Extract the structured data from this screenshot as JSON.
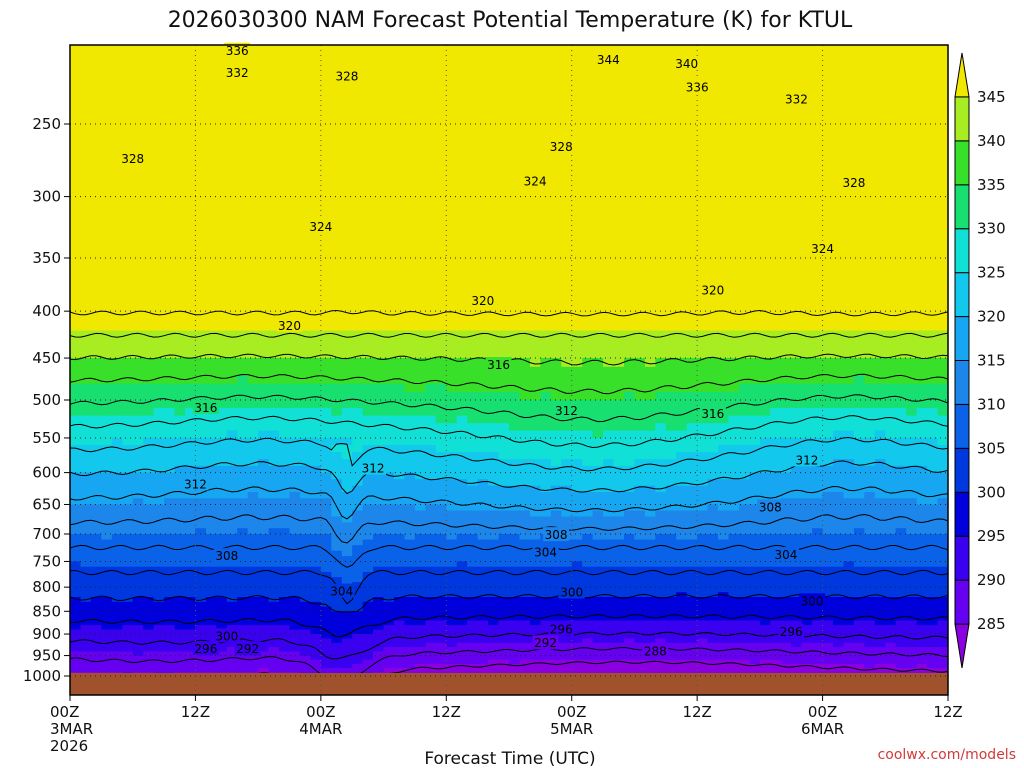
{
  "chart_data": {
    "type": "heatmap",
    "title": "2026030300 NAM Forecast Potential Temperature (K) for KTUL",
    "xlabel": "Forecast Time (UTC)",
    "credit": "coolwx.com/models",
    "x_range_hours": [
      0,
      84
    ],
    "x_ticks": [
      {
        "hour": 0,
        "lines": [
          "00Z",
          "3MAR",
          "2026"
        ]
      },
      {
        "hour": 12,
        "lines": [
          "12Z"
        ]
      },
      {
        "hour": 24,
        "lines": [
          "00Z",
          "4MAR"
        ]
      },
      {
        "hour": 36,
        "lines": [
          "12Z"
        ]
      },
      {
        "hour": 48,
        "lines": [
          "00Z",
          "5MAR"
        ]
      },
      {
        "hour": 60,
        "lines": [
          "12Z"
        ]
      },
      {
        "hour": 72,
        "lines": [
          "00Z",
          "6MAR"
        ]
      },
      {
        "hour": 84,
        "lines": [
          "12Z"
        ]
      }
    ],
    "y_label_unit": "hPa",
    "y_range_hpa": [
      200,
      1000
    ],
    "y_ticks": [
      250,
      300,
      350,
      400,
      450,
      500,
      550,
      600,
      650,
      700,
      750,
      800,
      850,
      900,
      950,
      1000
    ],
    "colorbar": {
      "min": 280,
      "max": 350,
      "ticks": [
        285,
        290,
        295,
        300,
        305,
        310,
        315,
        320,
        325,
        330,
        335,
        340,
        345
      ],
      "colors": [
        "#8a00e0",
        "#6600f0",
        "#3a00f0",
        "#0000dc",
        "#0038e0",
        "#0a62e8",
        "#1c86ea",
        "#16a6f2",
        "#12c8ec",
        "#10e0d6",
        "#18e070",
        "#38e02a",
        "#a8ec22",
        "#f0e800"
      ]
    },
    "contour_labels": [
      {
        "text": "336",
        "hour": 16.0,
        "hpa": 208
      },
      {
        "text": "332",
        "hour": 16.0,
        "hpa": 220
      },
      {
        "text": "328",
        "hour": 26.5,
        "hpa": 222
      },
      {
        "text": "344",
        "hour": 51.5,
        "hpa": 213
      },
      {
        "text": "340",
        "hour": 59.0,
        "hpa": 215
      },
      {
        "text": "336",
        "hour": 60.0,
        "hpa": 228
      },
      {
        "text": "332",
        "hour": 69.5,
        "hpa": 235
      },
      {
        "text": "328",
        "hour": 6.0,
        "hpa": 273
      },
      {
        "text": "328",
        "hour": 47.0,
        "hpa": 265
      },
      {
        "text": "328",
        "hour": 75.0,
        "hpa": 290
      },
      {
        "text": "324",
        "hour": 44.5,
        "hpa": 289
      },
      {
        "text": "324",
        "hour": 24.0,
        "hpa": 324
      },
      {
        "text": "324",
        "hour": 72.0,
        "hpa": 342
      },
      {
        "text": "320",
        "hour": 39.5,
        "hpa": 390
      },
      {
        "text": "320",
        "hour": 61.5,
        "hpa": 380
      },
      {
        "text": "320",
        "hour": 21.0,
        "hpa": 415
      },
      {
        "text": "316",
        "hour": 41.0,
        "hpa": 458
      },
      {
        "text": "316",
        "hour": 13.0,
        "hpa": 510
      },
      {
        "text": "316",
        "hour": 61.5,
        "hpa": 518
      },
      {
        "text": "312",
        "hour": 47.5,
        "hpa": 514
      },
      {
        "text": "312",
        "hour": 29.0,
        "hpa": 594
      },
      {
        "text": "312",
        "hour": 70.5,
        "hpa": 582
      },
      {
        "text": "312",
        "hour": 12.0,
        "hpa": 618
      },
      {
        "text": "308",
        "hour": 67.0,
        "hpa": 655
      },
      {
        "text": "308",
        "hour": 46.5,
        "hpa": 702
      },
      {
        "text": "308",
        "hour": 15.0,
        "hpa": 740
      },
      {
        "text": "304",
        "hour": 45.5,
        "hpa": 733
      },
      {
        "text": "304",
        "hour": 68.5,
        "hpa": 738
      },
      {
        "text": "304",
        "hour": 26.0,
        "hpa": 809
      },
      {
        "text": "300",
        "hour": 48.0,
        "hpa": 811
      },
      {
        "text": "300",
        "hour": 71.0,
        "hpa": 829
      },
      {
        "text": "300",
        "hour": 15.0,
        "hpa": 905
      },
      {
        "text": "296",
        "hour": 47.0,
        "hpa": 890
      },
      {
        "text": "296",
        "hour": 69.0,
        "hpa": 895
      },
      {
        "text": "296",
        "hour": 13.0,
        "hpa": 935
      },
      {
        "text": "292",
        "hour": 17.0,
        "hpa": 935
      },
      {
        "text": "292",
        "hour": 45.5,
        "hpa": 921
      },
      {
        "text": "288",
        "hour": 56.0,
        "hpa": 940
      }
    ]
  }
}
